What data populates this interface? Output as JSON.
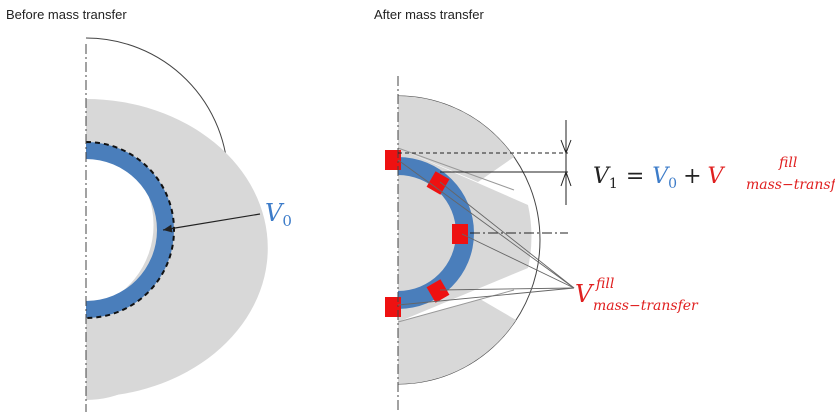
{
  "captions": {
    "before": "Before mass transfer",
    "after": "After mass transfer"
  },
  "labels": {
    "v0_left": {
      "V": "V",
      "sub": "0"
    },
    "equation": {
      "lhs_V": "V",
      "lhs_sub": "1",
      "eq": "=",
      "v0_V": "V",
      "v0_sub": "0",
      "plus": "+",
      "fill_V": "V",
      "fill_sup": "fill",
      "fill_sub": "mass−transfer"
    },
    "fill_right": {
      "V": "V",
      "sup": "fill",
      "sub": "mass−transfer"
    }
  },
  "colors": {
    "gray_fill": "#d8d8d8",
    "blue_ring": "#4a7ebb",
    "red_fill": "#ee1111",
    "v0_text": "#3d7cc9",
    "fill_text": "#e02020",
    "black_text": "#222222"
  }
}
